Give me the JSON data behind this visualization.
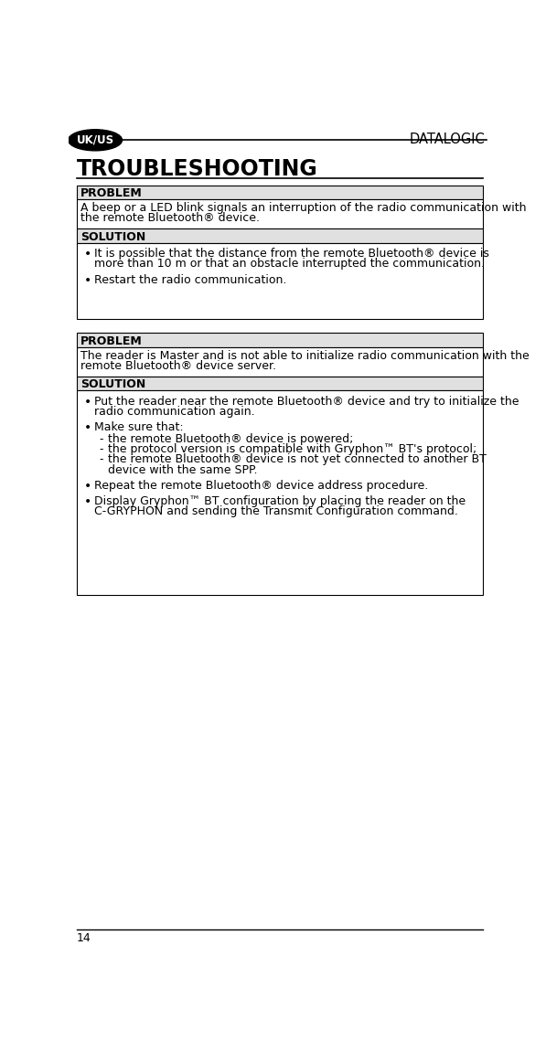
{
  "page_num": "14",
  "company": "DATALOGIC",
  "section_label": "UK/US",
  "title": "TROUBLESHOOTING",
  "bg_color": "#ffffff",
  "box1": {
    "problem_label": "PROBLEM",
    "problem_text_lines": [
      "A beep or a LED blink signals an interruption of the radio communication with",
      "the remote Bluetooth® device."
    ],
    "solution_label": "SOLUTION",
    "bullet1_lines": [
      "It is possible that the distance from the remote Bluetooth® device is",
      "more than 10 m or that an obstacle interrupted the communication."
    ],
    "bullet2": "Restart the radio communication."
  },
  "box2": {
    "problem_label": "PROBLEM",
    "problem_text_lines": [
      "The reader is Master and is not able to initialize radio communication with the",
      "remote Bluetooth® device server."
    ],
    "solution_label": "SOLUTION",
    "bullet1_lines": [
      "Put the reader near the remote Bluetooth® device and try to initialize the",
      "radio communication again."
    ],
    "bullet2": "Make sure that:",
    "sub1": "the remote Bluetooth® device is powered;",
    "sub2": "the protocol version is compatible with Gryphon™ BT's protocol;",
    "sub3_lines": [
      "the remote Bluetooth® device is not yet connected to another BT",
      "device with the same SPP."
    ],
    "bullet3": "Repeat the remote Bluetooth® device address procedure.",
    "bullet4_lines": [
      "Display Gryphon™ BT configuration by placing the reader on the",
      "C-GRYPHON and sending the Transmit Configuration command."
    ]
  }
}
